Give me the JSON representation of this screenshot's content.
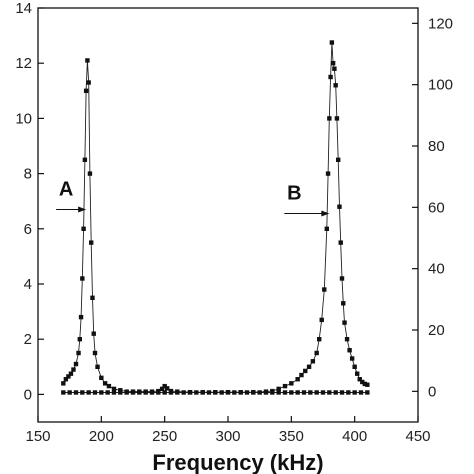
{
  "chart_data": {
    "type": "line",
    "title": "",
    "xlabel": "Frequency (kHz)",
    "ylabel_left": "",
    "ylabel_right": "",
    "xlim": [
      150,
      450
    ],
    "ylim_left": [
      -1,
      14
    ],
    "ylim_right": [
      -10,
      125
    ],
    "x_ticks": [
      150,
      200,
      250,
      300,
      350,
      400,
      450
    ],
    "y_ticks_left": [
      0,
      2,
      4,
      6,
      8,
      10,
      12,
      14
    ],
    "y_ticks_right": [
      0,
      20,
      40,
      60,
      80,
      100,
      120
    ],
    "grid": false,
    "marker": "square",
    "annotations": [
      {
        "text": "A",
        "arrow_to": {
          "x": 188,
          "y_left": 6.7
        }
      },
      {
        "text": "B",
        "arrow_to": {
          "x": 380,
          "y_right": 58
        }
      }
    ],
    "series": [
      {
        "axis": "left",
        "points": [
          [
            170,
            0.4
          ],
          [
            172,
            0.55
          ],
          [
            174,
            0.65
          ],
          [
            176,
            0.75
          ],
          [
            178,
            0.9
          ],
          [
            180,
            1.1
          ],
          [
            182,
            1.5
          ],
          [
            183,
            2.0
          ],
          [
            184,
            2.8
          ],
          [
            185,
            4.2
          ],
          [
            186,
            6.0
          ],
          [
            187,
            8.5
          ],
          [
            188,
            11.0
          ],
          [
            189,
            12.1
          ],
          [
            190,
            11.3
          ],
          [
            191,
            8.0
          ],
          [
            192,
            5.5
          ],
          [
            193,
            3.5
          ],
          [
            194,
            2.2
          ],
          [
            195,
            1.5
          ],
          [
            197,
            1.0
          ],
          [
            200,
            0.6
          ],
          [
            203,
            0.4
          ],
          [
            206,
            0.3
          ],
          [
            210,
            0.2
          ],
          [
            215,
            0.15
          ],
          [
            220,
            0.1
          ],
          [
            225,
            0.1
          ],
          [
            230,
            0.1
          ],
          [
            235,
            0.1
          ],
          [
            240,
            0.1
          ],
          [
            245,
            0.12
          ],
          [
            248,
            0.2
          ],
          [
            250,
            0.3
          ],
          [
            252,
            0.22
          ],
          [
            255,
            0.12
          ],
          [
            260,
            0.1
          ],
          [
            270,
            0.08
          ],
          [
            280,
            0.08
          ],
          [
            290,
            0.08
          ],
          [
            300,
            0.08
          ],
          [
            310,
            0.08
          ],
          [
            320,
            0.08
          ],
          [
            330,
            0.1
          ],
          [
            335,
            0.12
          ],
          [
            340,
            0.2
          ],
          [
            345,
            0.3
          ],
          [
            350,
            0.4
          ],
          [
            355,
            0.55
          ],
          [
            358,
            0.7
          ],
          [
            361,
            0.85
          ],
          [
            364,
            1.0
          ],
          [
            367,
            1.2
          ],
          [
            370,
            1.5
          ],
          [
            372,
            2.0
          ],
          [
            374,
            2.7
          ],
          [
            376,
            3.8
          ],
          [
            378,
            6.0
          ],
          [
            379,
            8.0
          ],
          [
            380,
            10.0
          ],
          [
            381,
            11.5
          ],
          [
            382,
            12.75
          ],
          [
            383,
            12.0
          ],
          [
            384,
            11.8
          ],
          [
            385,
            11.2
          ],
          [
            386,
            10.0
          ],
          [
            387,
            8.5
          ],
          [
            388,
            6.8
          ],
          [
            389,
            5.5
          ],
          [
            390,
            4.2
          ],
          [
            391,
            3.3
          ],
          [
            392,
            2.6
          ],
          [
            394,
            2.0
          ],
          [
            396,
            1.6
          ],
          [
            398,
            1.3
          ],
          [
            400,
            1.0
          ],
          [
            402,
            0.75
          ],
          [
            404,
            0.55
          ],
          [
            406,
            0.45
          ],
          [
            408,
            0.38
          ],
          [
            410,
            0.35
          ]
        ]
      },
      {
        "axis": "left",
        "points": [
          [
            170,
            0.07
          ],
          [
            175,
            0.07
          ],
          [
            180,
            0.07
          ],
          [
            185,
            0.07
          ],
          [
            190,
            0.07
          ],
          [
            195,
            0.07
          ],
          [
            200,
            0.07
          ],
          [
            205,
            0.07
          ],
          [
            210,
            0.07
          ],
          [
            215,
            0.07
          ],
          [
            220,
            0.07
          ],
          [
            225,
            0.07
          ],
          [
            230,
            0.07
          ],
          [
            235,
            0.07
          ],
          [
            240,
            0.07
          ],
          [
            245,
            0.07
          ],
          [
            250,
            0.07
          ],
          [
            255,
            0.07
          ],
          [
            260,
            0.07
          ],
          [
            265,
            0.07
          ],
          [
            270,
            0.07
          ],
          [
            275,
            0.07
          ],
          [
            280,
            0.07
          ],
          [
            285,
            0.07
          ],
          [
            290,
            0.07
          ],
          [
            295,
            0.07
          ],
          [
            300,
            0.07
          ],
          [
            305,
            0.07
          ],
          [
            310,
            0.07
          ],
          [
            315,
            0.07
          ],
          [
            320,
            0.07
          ],
          [
            325,
            0.07
          ],
          [
            330,
            0.07
          ],
          [
            335,
            0.07
          ],
          [
            340,
            0.07
          ],
          [
            345,
            0.07
          ],
          [
            350,
            0.07
          ],
          [
            355,
            0.07
          ],
          [
            360,
            0.07
          ],
          [
            365,
            0.07
          ],
          [
            370,
            0.07
          ],
          [
            375,
            0.07
          ],
          [
            380,
            0.07
          ],
          [
            385,
            0.07
          ],
          [
            390,
            0.07
          ],
          [
            395,
            0.07
          ],
          [
            400,
            0.07
          ],
          [
            405,
            0.07
          ],
          [
            410,
            0.07
          ]
        ]
      }
    ]
  }
}
